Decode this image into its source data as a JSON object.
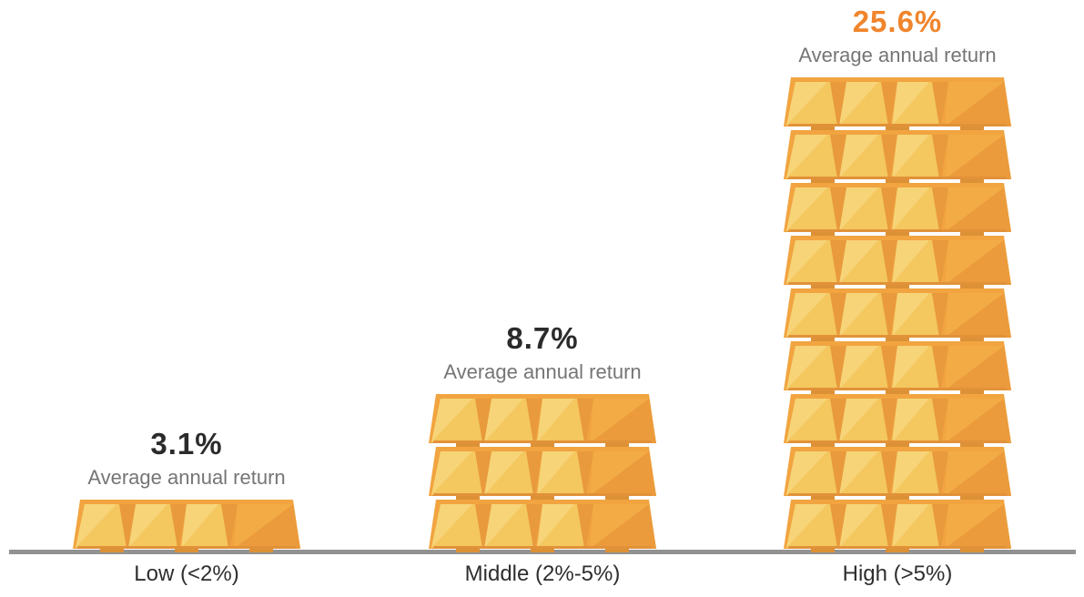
{
  "chart_data": {
    "type": "bar",
    "subtype": "pictogram-gold-bar-stacks",
    "title": "",
    "xlabel": "",
    "ylabel": "",
    "unit": "%",
    "grid": false,
    "legend": "none",
    "categories": [
      "Low (<2%)",
      "Middle (2%-5%)",
      "High (>5%)"
    ],
    "values": [
      3.1,
      8.7,
      25.6
    ],
    "series": [
      {
        "name": "Average annual return",
        "values": [
          3.1,
          8.7,
          25.6
        ]
      }
    ],
    "columns": [
      {
        "category": "Low (<2%)",
        "value": 3.1,
        "value_label": "3.1%",
        "sublabel": "Average annual return",
        "gold_bar_rows": 1,
        "value_color": "#2b2b2b"
      },
      {
        "category": "Middle (2%-5%)",
        "value": 8.7,
        "value_label": "8.7%",
        "sublabel": "Average annual return",
        "gold_bar_rows": 3,
        "value_color": "#2b2b2b"
      },
      {
        "category": "High (>5%)",
        "value": 25.6,
        "value_label": "25.6%",
        "sublabel": "Average annual return",
        "gold_bar_rows": 9,
        "value_color": "#f0852c"
      }
    ],
    "colors": {
      "value_default": "#2b2b2b",
      "value_highlight": "#f0852c",
      "sublabel_text": "#757575",
      "category_text": "#2e2e2e",
      "baseline": "#929292",
      "gold_base": "#f1a440",
      "gold_ingot": "#f4c75f",
      "gold_ingot_highlight": "#f7d478",
      "gold_gap": "#e89a3c",
      "gold_dark_ingot": "#f3ab46",
      "gold_dark_ingot_shadow": "#eb9b3b",
      "gold_bottom_shadow": "#e19239",
      "gold_feet": "#dd9136"
    }
  }
}
